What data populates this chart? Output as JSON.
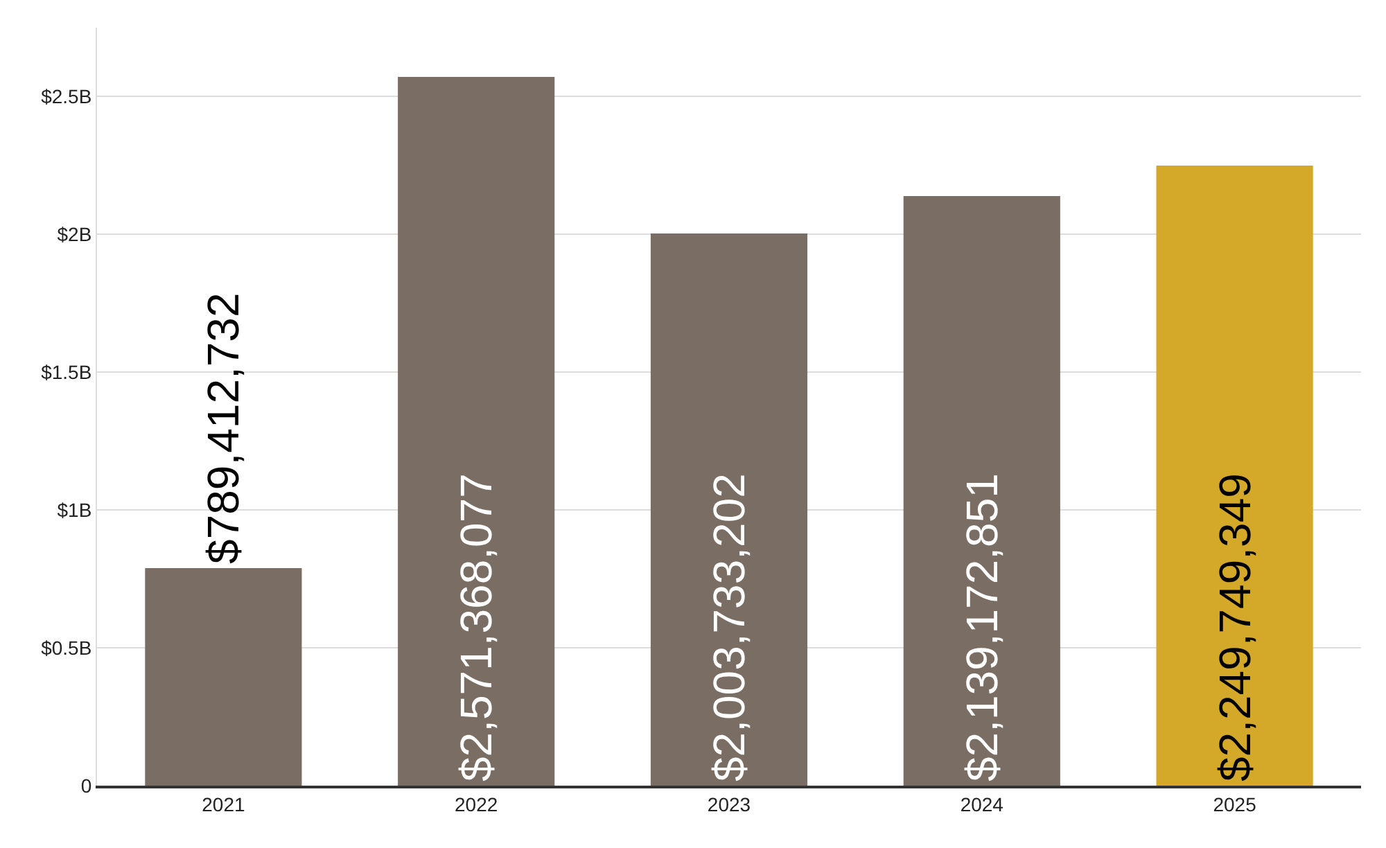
{
  "chart_data": {
    "type": "bar",
    "categories": [
      "2021",
      "2022",
      "2023",
      "2024",
      "2025"
    ],
    "values": [
      789412732,
      2571368077,
      2003733202,
      2139172851,
      2249749349
    ],
    "colors": [
      "#7a6d63",
      "#7a6d63",
      "#7a6d63",
      "#7a6d63",
      "#d4a829"
    ],
    "value_labels": [
      "$789,412,732",
      "$2,571,368,077",
      "$2,003,733,202",
      "$2,139,172,851",
      "$2,249,749,349"
    ],
    "ylim": [
      0,
      2750000000
    ],
    "yticks": [
      {
        "value": 0,
        "label": "0"
      },
      {
        "value": 500000000,
        "label": "$0.5B"
      },
      {
        "value": 1000000000,
        "label": "$1B"
      },
      {
        "value": 1500000000,
        "label": "$1.5B"
      },
      {
        "value": 2000000000,
        "label": "$2B"
      },
      {
        "value": 2500000000,
        "label": "$2.5B"
      }
    ],
    "grid": "y"
  }
}
